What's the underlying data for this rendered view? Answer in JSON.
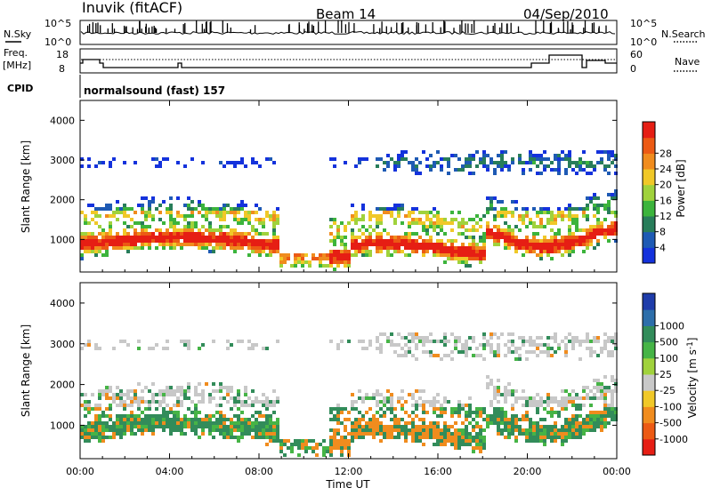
{
  "header": {
    "station": "Inuvik (fitACF)",
    "beam": "Beam 14",
    "date": "04/Sep/2010"
  },
  "noise_panel": {
    "left_label": "N.Sky",
    "right_label": "N.Search",
    "left_ticks": [
      "10^5",
      "10^0"
    ],
    "right_ticks": [
      "10^5",
      "10^0"
    ]
  },
  "freq_panel": {
    "left_label_1": "Freq.",
    "left_label_2": "[MHz]",
    "left_ticks": [
      "18",
      "8"
    ],
    "right_label": "Nave",
    "right_ticks": [
      "60",
      "0"
    ]
  },
  "cpid_panel": {
    "label": "CPID",
    "text": "normalsound (fast) 157"
  },
  "chart_data": [
    {
      "type": "heatmap",
      "title": "",
      "ylabel": "Slant Range [km]",
      "xlabel": "",
      "y_ticks": [
        "1000",
        "2000",
        "3000",
        "4000"
      ],
      "ylim": [
        180,
        4500
      ],
      "x_ticks": [
        "00:00",
        "04:00",
        "08:00",
        "12:00",
        "16:00",
        "20:00",
        "00:00"
      ],
      "colorbar": {
        "label": "Power [dB]",
        "ticks": [
          "4",
          "8",
          "12",
          "16",
          "20",
          "24",
          "28"
        ],
        "colors": [
          "#1432dc",
          "#1e5ab4",
          "#287d5a",
          "#3cb43c",
          "#a0d23c",
          "#f0c828",
          "#f08c1e",
          "#ec5a14",
          "#e61e14"
        ]
      }
    },
    {
      "type": "heatmap",
      "title": "",
      "ylabel": "Slant Range [km]",
      "xlabel": "Time UT",
      "y_ticks": [
        "1000",
        "2000",
        "3000",
        "4000"
      ],
      "ylim": [
        180,
        4500
      ],
      "x_ticks": [
        "00:00",
        "04:00",
        "08:00",
        "12:00",
        "16:00",
        "20:00",
        "00:00"
      ],
      "colorbar": {
        "label": "Velocity [m s^-1]",
        "ticks": [
          "1000",
          "500",
          "100",
          "25",
          "-25",
          "-100",
          "-500",
          "-1000"
        ],
        "colors": [
          "#1e3caa",
          "#2d6eaa",
          "#328c5a",
          "#46b446",
          "#a0d23c",
          "#c8c8c8",
          "#f0c828",
          "#f08c1e",
          "#ec5a14",
          "#e61e14"
        ]
      }
    }
  ]
}
